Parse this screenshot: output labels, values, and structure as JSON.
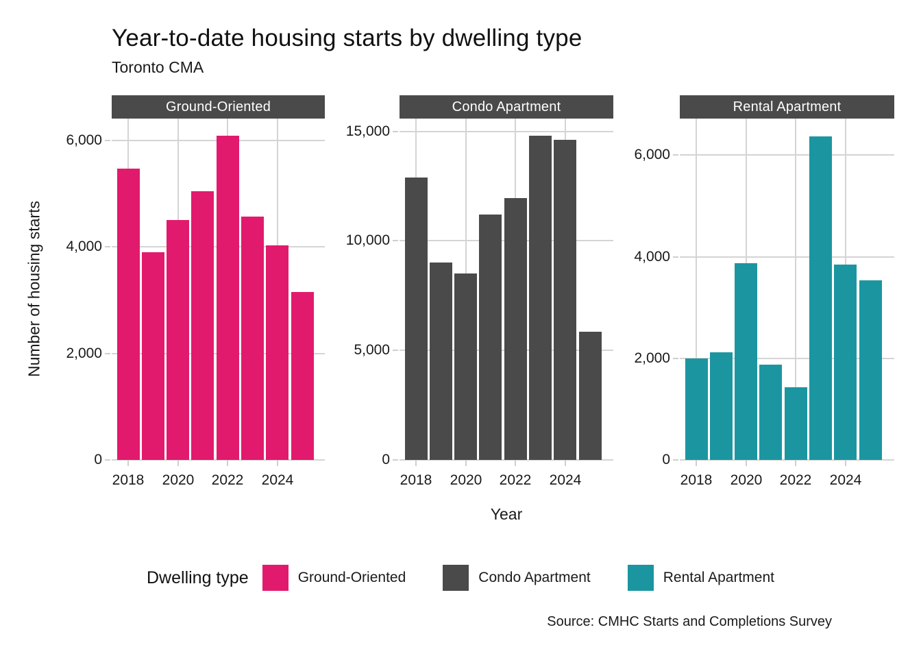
{
  "title": "Year-to-date housing starts by dwelling type",
  "subtitle": "Toronto CMA",
  "source": "Source: CMHC Starts and Completions Survey",
  "legend": {
    "title": "Dwelling type"
  },
  "colors": {
    "ground_oriented": "#e21a6d",
    "condo_apartment": "#4a4a4a",
    "rental_apartment": "#1b96a0",
    "strip_bg": "#4a4a4a",
    "strip_text": "#ffffff",
    "grid": "#d4d4d4",
    "tick": "#cfcfcf",
    "text": "#1a1a1a"
  },
  "chart_data": {
    "type": "bar",
    "faceted": true,
    "title": "Year-to-date housing starts by dwelling type",
    "subtitle": "Toronto CMA",
    "xlabel": "Year",
    "ylabel": "Number of housing starts",
    "grid": true,
    "legend_position": "bottom",
    "x": [
      2018,
      2019,
      2020,
      2021,
      2022,
      2023,
      2024,
      2025
    ],
    "x_tick_labels": [
      "2018",
      "2020",
      "2022",
      "2024"
    ],
    "x_ticks": [
      2018,
      2020,
      2022,
      2024
    ],
    "panels": [
      {
        "label": "Ground-Oriented",
        "color": "#e21a6d",
        "values": [
          5470,
          3900,
          4510,
          5050,
          6090,
          4570,
          4030,
          3150
        ],
        "yticks": [
          0,
          2000,
          4000,
          6000
        ],
        "ytick_labels": [
          "0",
          "2,000",
          "4,000",
          "6,000"
        ],
        "ymax": 6410
      },
      {
        "label": "Condo Apartment",
        "color": "#4a4a4a",
        "values": [
          12900,
          9000,
          8500,
          11200,
          11950,
          14800,
          14600,
          5850
        ],
        "yticks": [
          0,
          5000,
          10000,
          15000
        ],
        "ytick_labels": [
          "0",
          "5,000",
          "10,000",
          "15,000"
        ],
        "ymax": 15580
      },
      {
        "label": "Rental Apartment",
        "color": "#1b96a0",
        "values": [
          2000,
          2120,
          3870,
          1880,
          1430,
          6370,
          3840,
          3530
        ],
        "yticks": [
          0,
          2000,
          4000,
          6000
        ],
        "ytick_labels": [
          "0",
          "2,000",
          "4,000",
          "6,000"
        ],
        "ymax": 6720
      }
    ]
  }
}
